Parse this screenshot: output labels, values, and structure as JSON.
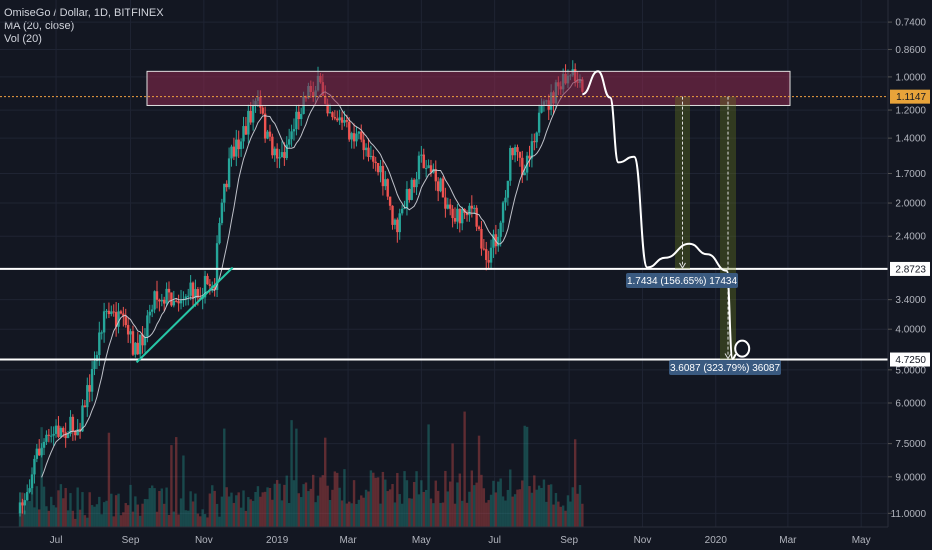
{
  "header": {
    "symbol": "OmiseGo / Dollar, 1D, BITFINEX",
    "ma": "MA (20, close)",
    "vol": "Vol (20)"
  },
  "colors": {
    "background": "#131722",
    "up": "#26a69a",
    "down": "#ef5350",
    "ma": "#d1d4dc",
    "resistance_zone": "#8e2a4f",
    "support_line": "#ffffff",
    "trendline": "#26c6a6",
    "projection": "#ffffff",
    "callout_bg": "#3a5a80",
    "current_price_line": "#f0a040"
  },
  "chart_data": {
    "type": "candlestick",
    "scale": "inverted-log",
    "x_axis": {
      "tick_labels": [
        "Jul",
        "Sep",
        "Nov",
        "2019",
        "Mar",
        "May",
        "Jul",
        "Sep",
        "Nov",
        "2020",
        "Mar",
        "May"
      ]
    },
    "y_axis": {
      "tick_labels": [
        "0.7400",
        "0.8600",
        "1.0000",
        "1.2000",
        "1.4000",
        "1.7000",
        "2.0000",
        "2.4000",
        "3.4000",
        "4.0000",
        "5.0000",
        "6.0000",
        "7.5000",
        "9.0000",
        "11.0000"
      ],
      "tick_values": [
        0.74,
        0.86,
        1.0,
        1.2,
        1.4,
        1.7,
        2.0,
        2.4,
        3.4,
        4.0,
        5.0,
        6.0,
        7.5,
        9.0,
        11.0
      ],
      "range": [
        0.67,
        11.6
      ]
    },
    "price_labels": [
      {
        "text": "1.1147",
        "value": 1.1147,
        "kind": "current"
      },
      {
        "text": "2.8723",
        "value": 2.8723,
        "kind": "support"
      },
      {
        "text": "4.7250",
        "value": 4.725,
        "kind": "support"
      }
    ],
    "resistance_zone": {
      "top": 0.97,
      "bottom": 1.17
    },
    "support_levels": [
      2.8723,
      4.725
    ],
    "measurements": [
      {
        "label": "1.7434 (156.65%) 17434",
        "from": 1.1147,
        "to": 2.8723
      },
      {
        "label": "3.6087 (323.79%) 36087",
        "from": 1.1147,
        "to": 4.725
      }
    ],
    "trendline": {
      "from": {
        "date": "2018-09-06",
        "price": 4.8
      },
      "to": {
        "date": "2018-11-25",
        "price": 2.85
      }
    },
    "series_path": [
      {
        "date": "2018-06-01",
        "price": 11.0
      },
      {
        "date": "2018-06-15",
        "price": 7.9
      },
      {
        "date": "2018-07-01",
        "price": 7.0
      },
      {
        "date": "2018-07-20",
        "price": 6.8
      },
      {
        "date": "2018-08-01",
        "price": 5.0
      },
      {
        "date": "2018-08-10",
        "price": 3.6
      },
      {
        "date": "2018-08-25",
        "price": 3.9
      },
      {
        "date": "2018-09-07",
        "price": 4.6
      },
      {
        "date": "2018-09-20",
        "price": 3.3
      },
      {
        "date": "2018-10-10",
        "price": 3.35
      },
      {
        "date": "2018-10-30",
        "price": 3.2
      },
      {
        "date": "2018-11-10",
        "price": 3.05
      },
      {
        "date": "2018-11-15",
        "price": 2.1
      },
      {
        "date": "2018-11-25",
        "price": 1.5
      },
      {
        "date": "2018-12-05",
        "price": 1.35
      },
      {
        "date": "2018-12-15",
        "price": 1.12
      },
      {
        "date": "2018-12-25",
        "price": 1.45
      },
      {
        "date": "2019-01-05",
        "price": 1.55
      },
      {
        "date": "2019-01-15",
        "price": 1.3
      },
      {
        "date": "2019-01-25",
        "price": 1.08
      },
      {
        "date": "2019-02-05",
        "price": 1.05
      },
      {
        "date": "2019-02-15",
        "price": 1.2
      },
      {
        "date": "2019-03-01",
        "price": 1.35
      },
      {
        "date": "2019-03-20",
        "price": 1.5
      },
      {
        "date": "2019-04-01",
        "price": 1.85
      },
      {
        "date": "2019-04-10",
        "price": 2.35
      },
      {
        "date": "2019-04-20",
        "price": 1.9
      },
      {
        "date": "2019-05-01",
        "price": 1.55
      },
      {
        "date": "2019-05-15",
        "price": 1.8
      },
      {
        "date": "2019-05-30",
        "price": 2.2
      },
      {
        "date": "2019-06-10",
        "price": 2.0
      },
      {
        "date": "2019-06-25",
        "price": 2.7
      },
      {
        "date": "2019-07-05",
        "price": 2.3
      },
      {
        "date": "2019-07-15",
        "price": 1.5
      },
      {
        "date": "2019-07-25",
        "price": 1.65
      },
      {
        "date": "2019-08-05",
        "price": 1.3
      },
      {
        "date": "2019-08-15",
        "price": 1.15
      },
      {
        "date": "2019-08-25",
        "price": 1.05
      },
      {
        "date": "2019-09-05",
        "price": 1.0
      },
      {
        "date": "2019-09-12",
        "price": 1.1
      }
    ],
    "projection_path": [
      {
        "date": "2019-09-12",
        "price": 1.1
      },
      {
        "date": "2019-09-25",
        "price": 0.97
      },
      {
        "date": "2019-10-05",
        "price": 1.12
      },
      {
        "date": "2019-10-12",
        "price": 1.6
      },
      {
        "date": "2019-10-25",
        "price": 1.55
      },
      {
        "date": "2019-11-05",
        "price": 2.85
      },
      {
        "date": "2019-11-20",
        "price": 2.7
      },
      {
        "date": "2019-12-10",
        "price": 2.5
      },
      {
        "date": "2019-12-25",
        "price": 2.65
      },
      {
        "date": "2020-01-10",
        "price": 2.9
      },
      {
        "date": "2020-01-15",
        "price": 4.7
      },
      {
        "date": "2020-01-18",
        "price": 4.6
      }
    ]
  }
}
